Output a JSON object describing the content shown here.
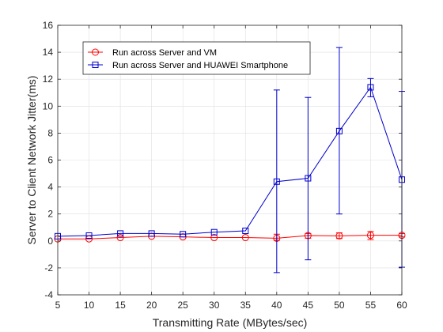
{
  "chart_data": {
    "type": "line",
    "title": "",
    "xlabel": "Transmitting Rate (MBytes/sec)",
    "ylabel": "Server to Client Network Jitter(ms)",
    "xlim": [
      5,
      60
    ],
    "ylim": [
      -4,
      16
    ],
    "xticks": [
      5,
      10,
      15,
      20,
      25,
      30,
      35,
      40,
      45,
      50,
      55,
      60
    ],
    "yticks": [
      -4,
      -2,
      0,
      2,
      4,
      6,
      8,
      10,
      12,
      14,
      16
    ],
    "grid": true,
    "legend_position": "top-left",
    "x": [
      5,
      10,
      15,
      20,
      25,
      30,
      35,
      40,
      45,
      50,
      55,
      60
    ],
    "series": [
      {
        "name": "Run across Server and VM",
        "color": "#ff0000",
        "marker": "circle",
        "values": [
          0.15,
          0.15,
          0.25,
          0.35,
          0.3,
          0.25,
          0.25,
          0.2,
          0.4,
          0.38,
          0.42,
          0.42
        ],
        "err_low": [
          0.15,
          0.15,
          0.25,
          0.35,
          0.3,
          0.25,
          0.25,
          0.05,
          0.2,
          0.18,
          0.1,
          0.3
        ],
        "err_high": [
          0.15,
          0.15,
          0.25,
          0.35,
          0.3,
          0.25,
          0.25,
          0.5,
          0.55,
          0.6,
          0.7,
          0.55
        ]
      },
      {
        "name": "Run across Server and HUAWEI Smartphone",
        "color": "#0000cc",
        "marker": "square",
        "values": [
          0.35,
          0.4,
          0.55,
          0.55,
          0.5,
          0.65,
          0.75,
          4.4,
          4.65,
          8.15,
          11.4,
          4.55
        ],
        "err_low": [
          0.35,
          0.4,
          0.55,
          0.55,
          0.5,
          0.65,
          0.75,
          -2.35,
          -1.4,
          2.0,
          10.7,
          -1.95
        ],
        "err_high": [
          0.35,
          0.4,
          0.55,
          0.55,
          0.5,
          0.65,
          0.75,
          11.2,
          10.65,
          14.35,
          12.05,
          11.1
        ]
      }
    ]
  }
}
